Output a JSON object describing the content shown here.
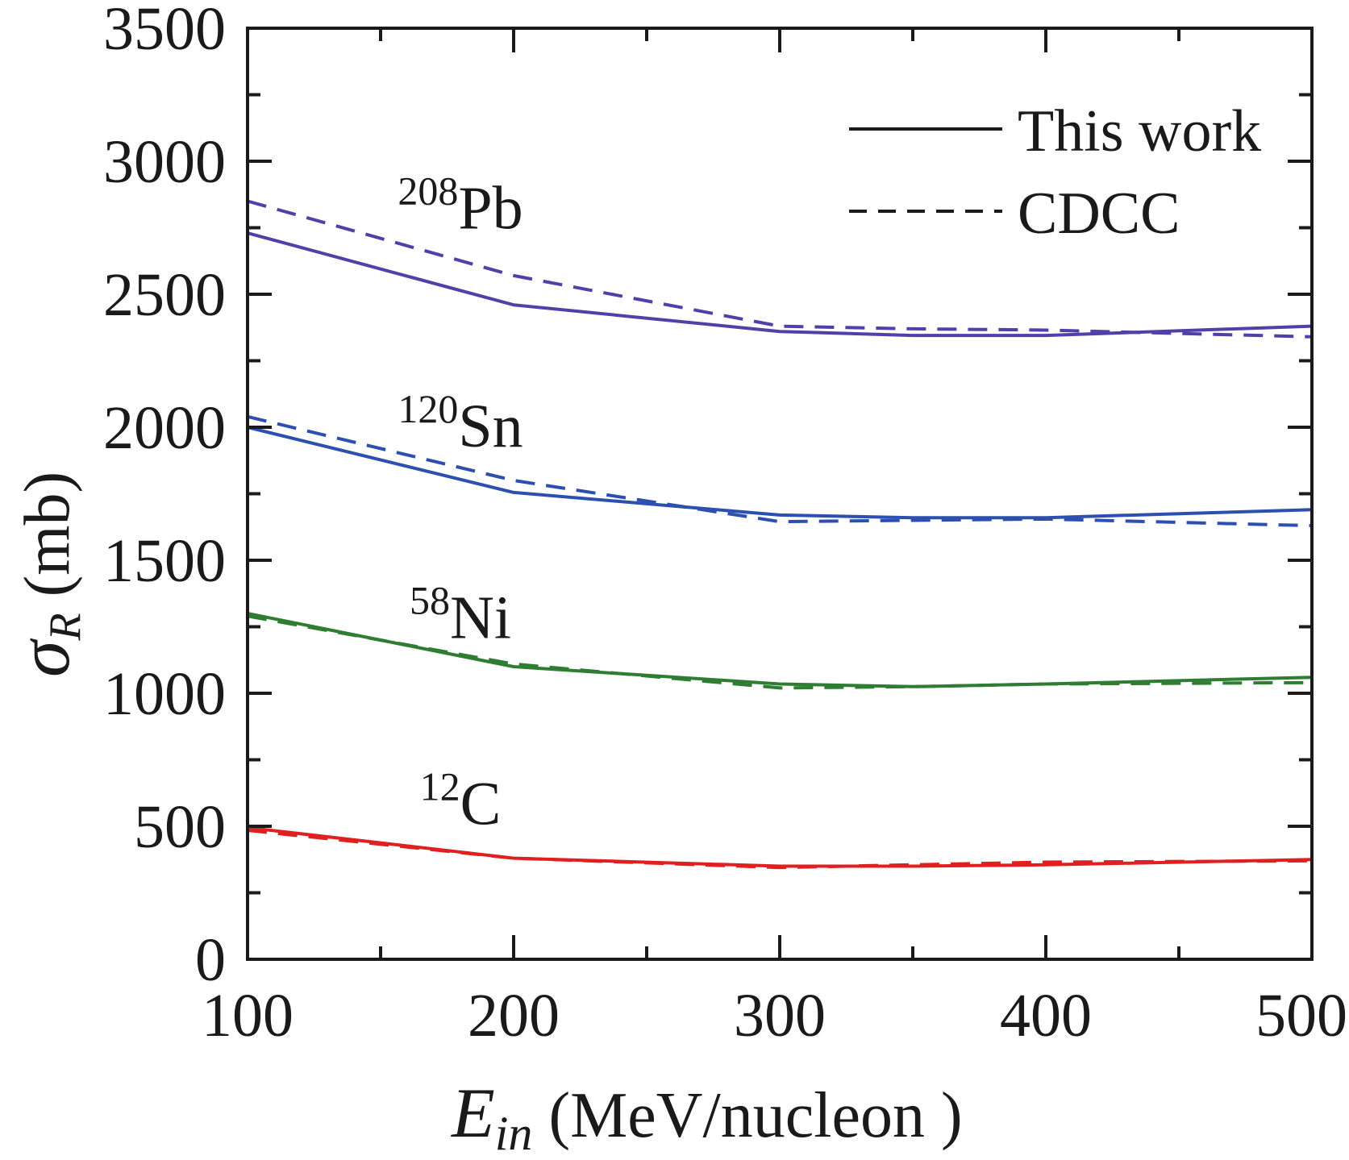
{
  "chart_data": {
    "type": "line",
    "xlabel": {
      "symbol": "E",
      "subscript": "in",
      "unit": " (MeV/nucleon )"
    },
    "ylabel": {
      "symbol": "σ",
      "subscript": "R",
      "unit": " (mb)"
    },
    "xlim": [
      100,
      500
    ],
    "ylim": [
      0,
      3500
    ],
    "x_ticks": [
      100,
      200,
      300,
      400,
      500
    ],
    "x_tick_labels": [
      "100",
      "200",
      "300",
      "400",
      "500"
    ],
    "y_ticks": [
      0,
      500,
      1000,
      1500,
      2000,
      2500,
      3000,
      3500
    ],
    "y_tick_labels": [
      "0",
      "500",
      "1000",
      "1500",
      "2000",
      "2500",
      "3000",
      "3500"
    ],
    "x_minor_step": 50,
    "y_minor_step": 250,
    "grid": false,
    "legend": {
      "position": "top-right",
      "entries": [
        {
          "label": "This work",
          "style": "solid"
        },
        {
          "label": "CDCC",
          "style": "dashed"
        }
      ]
    },
    "annotations": [
      {
        "mass": "208",
        "element": "Pb",
        "x": 180,
        "y": 2820
      },
      {
        "mass": "120",
        "element": "Sn",
        "x": 180,
        "y": 2000
      },
      {
        "mass": "58",
        "element": "Ni",
        "x": 180,
        "y": 1280
      },
      {
        "mass": "12",
        "element": "C",
        "x": 180,
        "y": 580
      }
    ],
    "series": [
      {
        "nucleus": "208Pb",
        "style": "solid",
        "color": "#5040a8",
        "x": [
          100,
          200,
          300,
          350,
          400,
          500
        ],
        "y": [
          2730,
          2460,
          2360,
          2345,
          2345,
          2380
        ]
      },
      {
        "nucleus": "208Pb",
        "style": "dashed",
        "color": "#5040a8",
        "x": [
          100,
          200,
          300,
          350,
          400,
          500
        ],
        "y": [
          2850,
          2570,
          2380,
          2370,
          2365,
          2340
        ]
      },
      {
        "nucleus": "120Sn",
        "style": "solid",
        "color": "#2c4fb0",
        "x": [
          100,
          200,
          300,
          350,
          400,
          500
        ],
        "y": [
          2000,
          1755,
          1670,
          1660,
          1660,
          1690
        ]
      },
      {
        "nucleus": "120Sn",
        "style": "dashed",
        "color": "#2c4fb0",
        "x": [
          100,
          200,
          300,
          350,
          400,
          500
        ],
        "y": [
          2040,
          1800,
          1645,
          1650,
          1655,
          1630
        ]
      },
      {
        "nucleus": "58Ni",
        "style": "solid",
        "color": "#2e7d32",
        "x": [
          100,
          200,
          300,
          350,
          400,
          500
        ],
        "y": [
          1300,
          1100,
          1035,
          1025,
          1035,
          1060
        ]
      },
      {
        "nucleus": "58Ni",
        "style": "dashed",
        "color": "#2e7d32",
        "x": [
          100,
          200,
          300,
          350,
          400,
          500
        ],
        "y": [
          1290,
          1110,
          1020,
          1025,
          1035,
          1040
        ]
      },
      {
        "nucleus": "12C",
        "style": "solid",
        "color": "#e02020",
        "x": [
          100,
          200,
          300,
          350,
          400,
          500
        ],
        "y": [
          495,
          380,
          350,
          350,
          355,
          375
        ]
      },
      {
        "nucleus": "12C",
        "style": "dashed",
        "color": "#e02020",
        "x": [
          100,
          200,
          300,
          350,
          400,
          500
        ],
        "y": [
          485,
          380,
          345,
          355,
          365,
          370
        ]
      }
    ]
  }
}
